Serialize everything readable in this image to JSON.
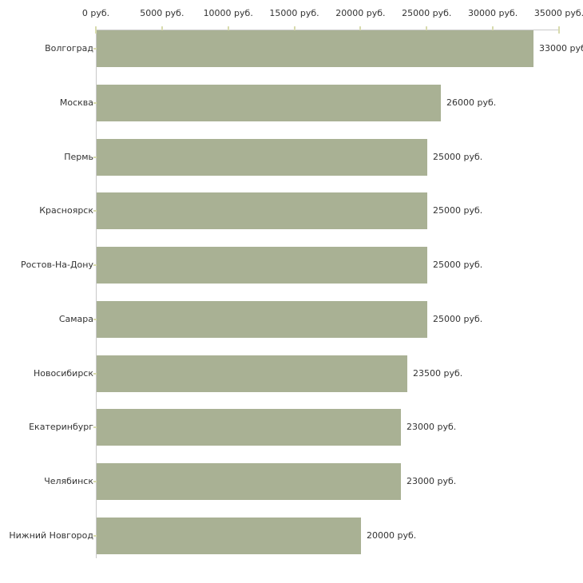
{
  "chart_data": {
    "type": "bar",
    "orientation": "horizontal",
    "title": "",
    "xlabel": "",
    "ylabel": "",
    "categories": [
      "Волгоград",
      "Москва",
      "Пермь",
      "Красноярск",
      "Ростов-На-Дону",
      "Самара",
      "Новосибирск",
      "Екатеринбург",
      "Челябинск",
      "Нижний Новгород"
    ],
    "values": [
      33000,
      26000,
      25000,
      25000,
      25000,
      25000,
      23500,
      23000,
      23000,
      20000
    ],
    "value_labels": [
      "33000 руб",
      "26000 руб.",
      "25000 руб.",
      "25000 руб.",
      "25000 руб.",
      "25000 руб.",
      "23500 руб.",
      "23000 руб.",
      "23000 руб.",
      "20000 руб."
    ],
    "x_tick_labels": [
      "0 руб.",
      "5000 руб.",
      "10000 руб.",
      "15000 руб.",
      "20000 руб.",
      "25000 руб.",
      "30000 руб.",
      "35000 руб."
    ],
    "x_tick_values": [
      0,
      5000,
      10000,
      15000,
      20000,
      25000,
      30000,
      35000
    ],
    "xlim": [
      0,
      35000
    ],
    "grid": false,
    "legend": false,
    "colors": {
      "bar": "#a9b194",
      "axis": "#c9c9c9",
      "tick": "#d8dbae",
      "text": "#333333",
      "background": "#ffffff"
    }
  }
}
